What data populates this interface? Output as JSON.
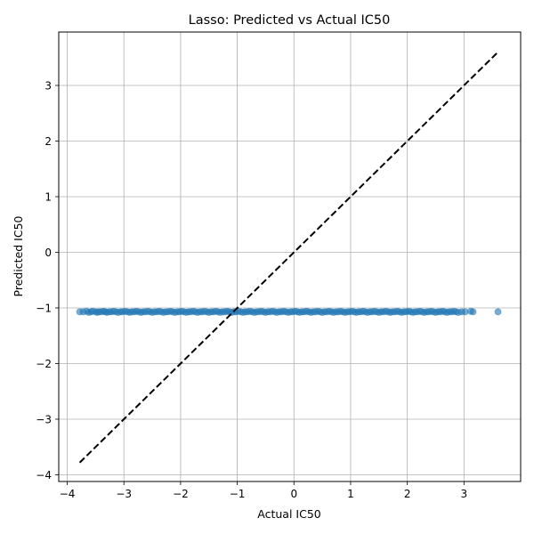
{
  "chart_data": {
    "type": "scatter",
    "title": "Lasso: Predicted vs Actual IC50",
    "xlabel": "Actual IC50",
    "ylabel": "Predicted IC50",
    "xlim": [
      -4.15,
      4.0
    ],
    "ylim": [
      -4.12,
      3.96
    ],
    "xticks": [
      -4,
      -3,
      -2,
      -1,
      0,
      1,
      2,
      3
    ],
    "yticks": [
      -4,
      -3,
      -2,
      -1,
      0,
      1,
      2,
      3
    ],
    "xtick_labels": [
      "−4",
      "−3",
      "−2",
      "−1",
      "0",
      "1",
      "2",
      "3"
    ],
    "ytick_labels": [
      "−4",
      "−3",
      "−2",
      "−1",
      "0",
      "1",
      "2",
      "3"
    ],
    "grid": true,
    "point_color": "#1f77b4",
    "point_alpha": 0.6,
    "reference_line": {
      "x": [
        -3.78,
        3.6
      ],
      "y": [
        -3.78,
        3.6
      ],
      "style": "dashed",
      "color": "#000000"
    },
    "predicted_constant": -1.07,
    "series": [
      {
        "x": [
          -3.78,
          -3.72,
          -3.66,
          -3.62,
          -3.58,
          -3.55,
          -3.5,
          -3.47,
          -3.44,
          -3.4,
          -3.36,
          -3.33,
          -3.3,
          -3.26,
          -3.22,
          -3.18,
          -3.14,
          -3.1,
          -3.06,
          -3.02,
          -2.98,
          -2.94,
          -2.9,
          -2.86,
          -2.82,
          -2.78,
          -2.74,
          -2.7,
          -2.66,
          -2.62,
          -2.58,
          -2.54,
          -2.5,
          -2.46,
          -2.42,
          -2.38,
          -2.34,
          -2.3,
          -2.26,
          -2.22,
          -2.18,
          -2.14,
          -2.1,
          -2.06,
          -2.02,
          -1.98,
          -1.94,
          -1.9,
          -1.86,
          -1.82,
          -1.78,
          -1.74,
          -1.7,
          -1.66,
          -1.62,
          -1.58,
          -1.54,
          -1.5,
          -1.46,
          -1.42,
          -1.38,
          -1.34,
          -1.3,
          -1.26,
          -1.22,
          -1.18,
          -1.14,
          -1.1,
          -1.06,
          -1.02,
          -0.98,
          -0.94,
          -0.9,
          -0.86,
          -0.82,
          -0.78,
          -0.74,
          -0.7,
          -0.66,
          -0.62,
          -0.58,
          -0.54,
          -0.5,
          -0.46,
          -0.42,
          -0.38,
          -0.34,
          -0.3,
          -0.26,
          -0.22,
          -0.18,
          -0.14,
          -0.1,
          -0.06,
          -0.02,
          0.02,
          0.06,
          0.1,
          0.14,
          0.18,
          0.22,
          0.26,
          0.3,
          0.34,
          0.38,
          0.42,
          0.46,
          0.5,
          0.54,
          0.58,
          0.62,
          0.66,
          0.7,
          0.74,
          0.78,
          0.82,
          0.86,
          0.9,
          0.94,
          0.98,
          1.02,
          1.06,
          1.1,
          1.14,
          1.18,
          1.22,
          1.26,
          1.3,
          1.34,
          1.38,
          1.42,
          1.46,
          1.5,
          1.54,
          1.58,
          1.62,
          1.66,
          1.7,
          1.74,
          1.78,
          1.82,
          1.86,
          1.9,
          1.94,
          1.98,
          2.02,
          2.06,
          2.1,
          2.14,
          2.18,
          2.22,
          2.26,
          2.3,
          2.34,
          2.38,
          2.42,
          2.46,
          2.5,
          2.54,
          2.58,
          2.62,
          2.66,
          2.7,
          2.74,
          2.78,
          2.82,
          2.86,
          2.9,
          2.96,
          3.02,
          3.12,
          3.16,
          3.6
        ],
        "y": [
          -1.07,
          -1.07,
          -1.06,
          -1.08,
          -1.07,
          -1.06,
          -1.07,
          -1.08,
          -1.07,
          -1.07,
          -1.06,
          -1.07,
          -1.08,
          -1.07,
          -1.07,
          -1.06,
          -1.07,
          -1.08,
          -1.07,
          -1.07,
          -1.06,
          -1.07,
          -1.08,
          -1.07,
          -1.07,
          -1.06,
          -1.07,
          -1.08,
          -1.07,
          -1.07,
          -1.06,
          -1.07,
          -1.08,
          -1.07,
          -1.07,
          -1.06,
          -1.07,
          -1.08,
          -1.07,
          -1.07,
          -1.06,
          -1.07,
          -1.08,
          -1.07,
          -1.07,
          -1.06,
          -1.07,
          -1.08,
          -1.07,
          -1.07,
          -1.06,
          -1.07,
          -1.08,
          -1.07,
          -1.07,
          -1.06,
          -1.07,
          -1.08,
          -1.07,
          -1.07,
          -1.06,
          -1.07,
          -1.08,
          -1.07,
          -1.07,
          -1.06,
          -1.07,
          -1.08,
          -1.07,
          -1.07,
          -1.06,
          -1.07,
          -1.08,
          -1.07,
          -1.07,
          -1.06,
          -1.07,
          -1.08,
          -1.07,
          -1.07,
          -1.06,
          -1.07,
          -1.08,
          -1.07,
          -1.07,
          -1.06,
          -1.07,
          -1.08,
          -1.07,
          -1.07,
          -1.06,
          -1.07,
          -1.08,
          -1.07,
          -1.07,
          -1.06,
          -1.07,
          -1.08,
          -1.07,
          -1.07,
          -1.06,
          -1.07,
          -1.08,
          -1.07,
          -1.07,
          -1.06,
          -1.07,
          -1.08,
          -1.07,
          -1.07,
          -1.06,
          -1.07,
          -1.08,
          -1.07,
          -1.07,
          -1.06,
          -1.07,
          -1.08,
          -1.07,
          -1.07,
          -1.06,
          -1.07,
          -1.08,
          -1.07,
          -1.07,
          -1.06,
          -1.07,
          -1.08,
          -1.07,
          -1.07,
          -1.06,
          -1.07,
          -1.08,
          -1.07,
          -1.07,
          -1.06,
          -1.07,
          -1.08,
          -1.07,
          -1.07,
          -1.06,
          -1.07,
          -1.08,
          -1.07,
          -1.07,
          -1.06,
          -1.07,
          -1.08,
          -1.07,
          -1.07,
          -1.06,
          -1.07,
          -1.08,
          -1.07,
          -1.07,
          -1.06,
          -1.07,
          -1.08,
          -1.07,
          -1.07,
          -1.06,
          -1.07,
          -1.08,
          -1.07,
          -1.07,
          -1.06,
          -1.07,
          -1.08,
          -1.07,
          -1.07,
          -1.06,
          -1.07,
          -1.07
        ]
      }
    ]
  }
}
